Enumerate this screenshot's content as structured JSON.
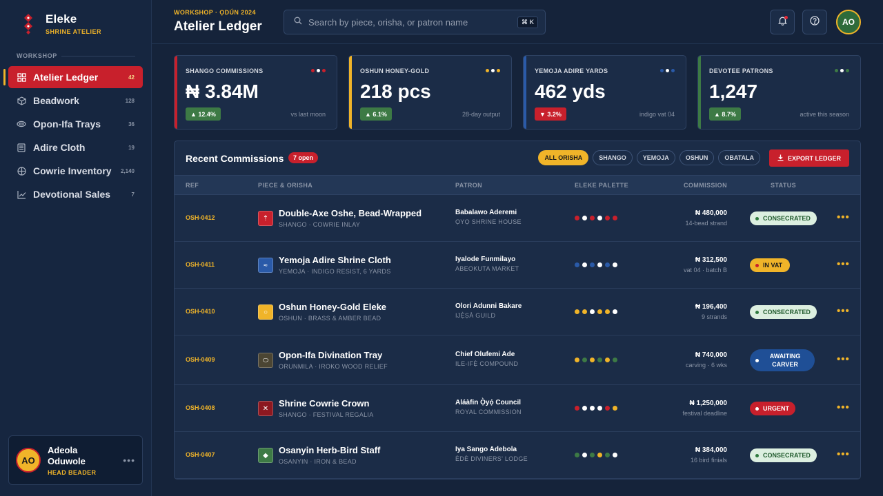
{
  "brand": {
    "name": "Eleke",
    "subtitle": "SHRINE ATELIER"
  },
  "sidebar": {
    "section": "WORKSHOP",
    "items": [
      {
        "label": "Atelier Ledger",
        "count": "42",
        "icon": "grid-icon",
        "active": true
      },
      {
        "label": "Beadwork",
        "count": "128",
        "icon": "cube-icon"
      },
      {
        "label": "Opon-Ifa Trays",
        "count": "36",
        "icon": "eye-icon"
      },
      {
        "label": "Adire Cloth",
        "count": "19",
        "icon": "cloth-icon"
      },
      {
        "label": "Cowrie Inventory",
        "count": "2,140",
        "icon": "compass-icon"
      },
      {
        "label": "Devotional Sales",
        "count": "7",
        "icon": "chart-icon"
      }
    ],
    "profile": {
      "initials": "AO",
      "name": "Adeola Oduwole",
      "role": "HEAD BEADER"
    }
  },
  "header": {
    "eyebrow": "WORKSHOP · ỌDÚN 2024",
    "title": "Atelier Ledger",
    "search_placeholder": "Search by piece, orisha, or patron name",
    "shortcut": "⌘ K",
    "user_initials": "AO"
  },
  "stats": [
    {
      "label": "SHANGO COMMISSIONS",
      "value": "₦ 3.84M",
      "change": "▲ 12.4%",
      "trend": "up",
      "note": "vs last moon",
      "accent": "#c8202c",
      "dots": [
        "#c8202c",
        "#ffffff",
        "#c8202c"
      ]
    },
    {
      "label": "OSHUN HONEY-GOLD",
      "value": "218 pcs",
      "change": "▲ 6.1%",
      "trend": "up",
      "note": "28-day output",
      "accent": "#f0b429",
      "dots": [
        "#f0b429",
        "#ffffff",
        "#f0b429"
      ]
    },
    {
      "label": "YEMOJA ADIRE YARDS",
      "value": "462 yds",
      "change": "▼ 3.2%",
      "trend": "down",
      "note": "indigo vat 04",
      "accent": "#2a5aa8",
      "dots": [
        "#2a5aa8",
        "#ffffff",
        "#2a5aa8"
      ]
    },
    {
      "label": "DEVOTEE PATRONS",
      "value": "1,247",
      "change": "▲ 8.7%",
      "trend": "up",
      "note": "active this season",
      "accent": "#3d7a45",
      "dots": [
        "#3d7a45",
        "#ffffff",
        "#3d7a45"
      ]
    }
  ],
  "commissions": {
    "title": "Recent Commissions",
    "open_badge": "7 open",
    "filters": [
      "ALL ORISHA",
      "SHANGO",
      "YEMOJA",
      "OSHUN",
      "OBATALA"
    ],
    "active_filter": "ALL ORISHA",
    "export_label": "EXPORT LEDGER",
    "columns": [
      "REF",
      "PIECE & ORISHA",
      "PATRON",
      "ELEKE PALETTE",
      "COMMISSION",
      "STATUS"
    ],
    "rows": [
      {
        "ref": "OSH-0412",
        "icon": "axe-icon",
        "glyph": "⇡",
        "icon_color": "#c8202c",
        "piece": "Double-Axe Oshe, Bead-Wrapped",
        "detail": "SHANGO · COWRIE INLAY",
        "patron": "Babalawo Aderemi",
        "patron_detail": "ỌYỌ SHRINE HOUSE",
        "palette": [
          "#c8202c",
          "#ffffff",
          "#c8202c",
          "#ffffff",
          "#c8202c",
          "#c8202c"
        ],
        "amount": "₦ 480,000",
        "amount_detail": "14-bead strand",
        "status": "CONSECRATED",
        "status_type": "consecrated"
      },
      {
        "ref": "OSH-0411",
        "icon": "wave-icon",
        "glyph": "≈",
        "icon_color": "#2a5aa8",
        "piece": "Yemoja Adire Shrine Cloth",
        "detail": "YEMOJA · INDIGO RESIST, 6 YARDS",
        "patron": "Iyalode Funmilayo",
        "patron_detail": "ABEOKUTA MARKET",
        "palette": [
          "#2a5aa8",
          "#ffffff",
          "#2a5aa8",
          "#ffffff",
          "#2a5aa8",
          "#ffffff"
        ],
        "amount": "₦ 312,500",
        "amount_detail": "vat 04 · batch B",
        "status": "IN VAT",
        "status_type": "invat"
      },
      {
        "ref": "OSH-0410",
        "icon": "sun-icon",
        "glyph": "○",
        "icon_color": "#f0b429",
        "piece": "Oshun Honey-Gold Eleke",
        "detail": "OSHUN · BRASS & AMBER BEAD",
        "patron": "Olori Adunni Bakare",
        "patron_detail": "IJẸ̀ṢÀ GUILD",
        "palette": [
          "#f0b429",
          "#f0b429",
          "#ffffff",
          "#f0b429",
          "#f0b429",
          "#ffffff"
        ],
        "amount": "₦ 196,400",
        "amount_detail": "9 strands",
        "status": "CONSECRATED",
        "status_type": "consecrated"
      },
      {
        "ref": "OSH-0409",
        "icon": "tray-icon",
        "glyph": "⬭",
        "icon_color": "#4b4533",
        "piece": "Opon-Ifa Divination Tray",
        "detail": "ORUNMILA · IROKO WOOD RELIEF",
        "patron": "Chief Olufemi Ade",
        "patron_detail": "ILE-IFẸ̀ COMPOUND",
        "palette": [
          "#f0b429",
          "#3d7a45",
          "#f0b429",
          "#3d7a45",
          "#f0b429",
          "#3d7a45"
        ],
        "amount": "₦ 740,000",
        "amount_detail": "carving · 6 wks",
        "status": "AWAITING CARVER",
        "status_type": "awaiting"
      },
      {
        "ref": "OSH-0408",
        "icon": "crown-icon",
        "glyph": "✕",
        "icon_color": "#8c1820",
        "piece": "Shrine Cowrie Crown",
        "detail": "SHANGO · FESTIVAL REGALIA",
        "patron": "Aláàfin Ọ̀yọ́ Council",
        "patron_detail": "ROYAL COMMISSION",
        "palette": [
          "#c8202c",
          "#ffffff",
          "#ffffff",
          "#ffffff",
          "#c8202c",
          "#f0b429"
        ],
        "amount": "₦ 1,250,000",
        "amount_detail": "festival deadline",
        "status": "URGENT",
        "status_type": "urgent"
      },
      {
        "ref": "OSH-0407",
        "icon": "leaf-icon",
        "glyph": "◆",
        "icon_color": "#3d7a45",
        "piece": "Osanyin Herb-Bird Staff",
        "detail": "OSANYIN · IRON & BEAD",
        "patron": "Iya Sango Adebola",
        "patron_detail": "ÈDÈ DIVINERS' LODGE",
        "palette": [
          "#3d7a45",
          "#ffffff",
          "#3d7a45",
          "#f0b429",
          "#3d7a45",
          "#ffffff"
        ],
        "amount": "₦ 384,000",
        "amount_detail": "16 bird finials",
        "status": "CONSECRATED",
        "status_type": "consecrated"
      }
    ]
  }
}
